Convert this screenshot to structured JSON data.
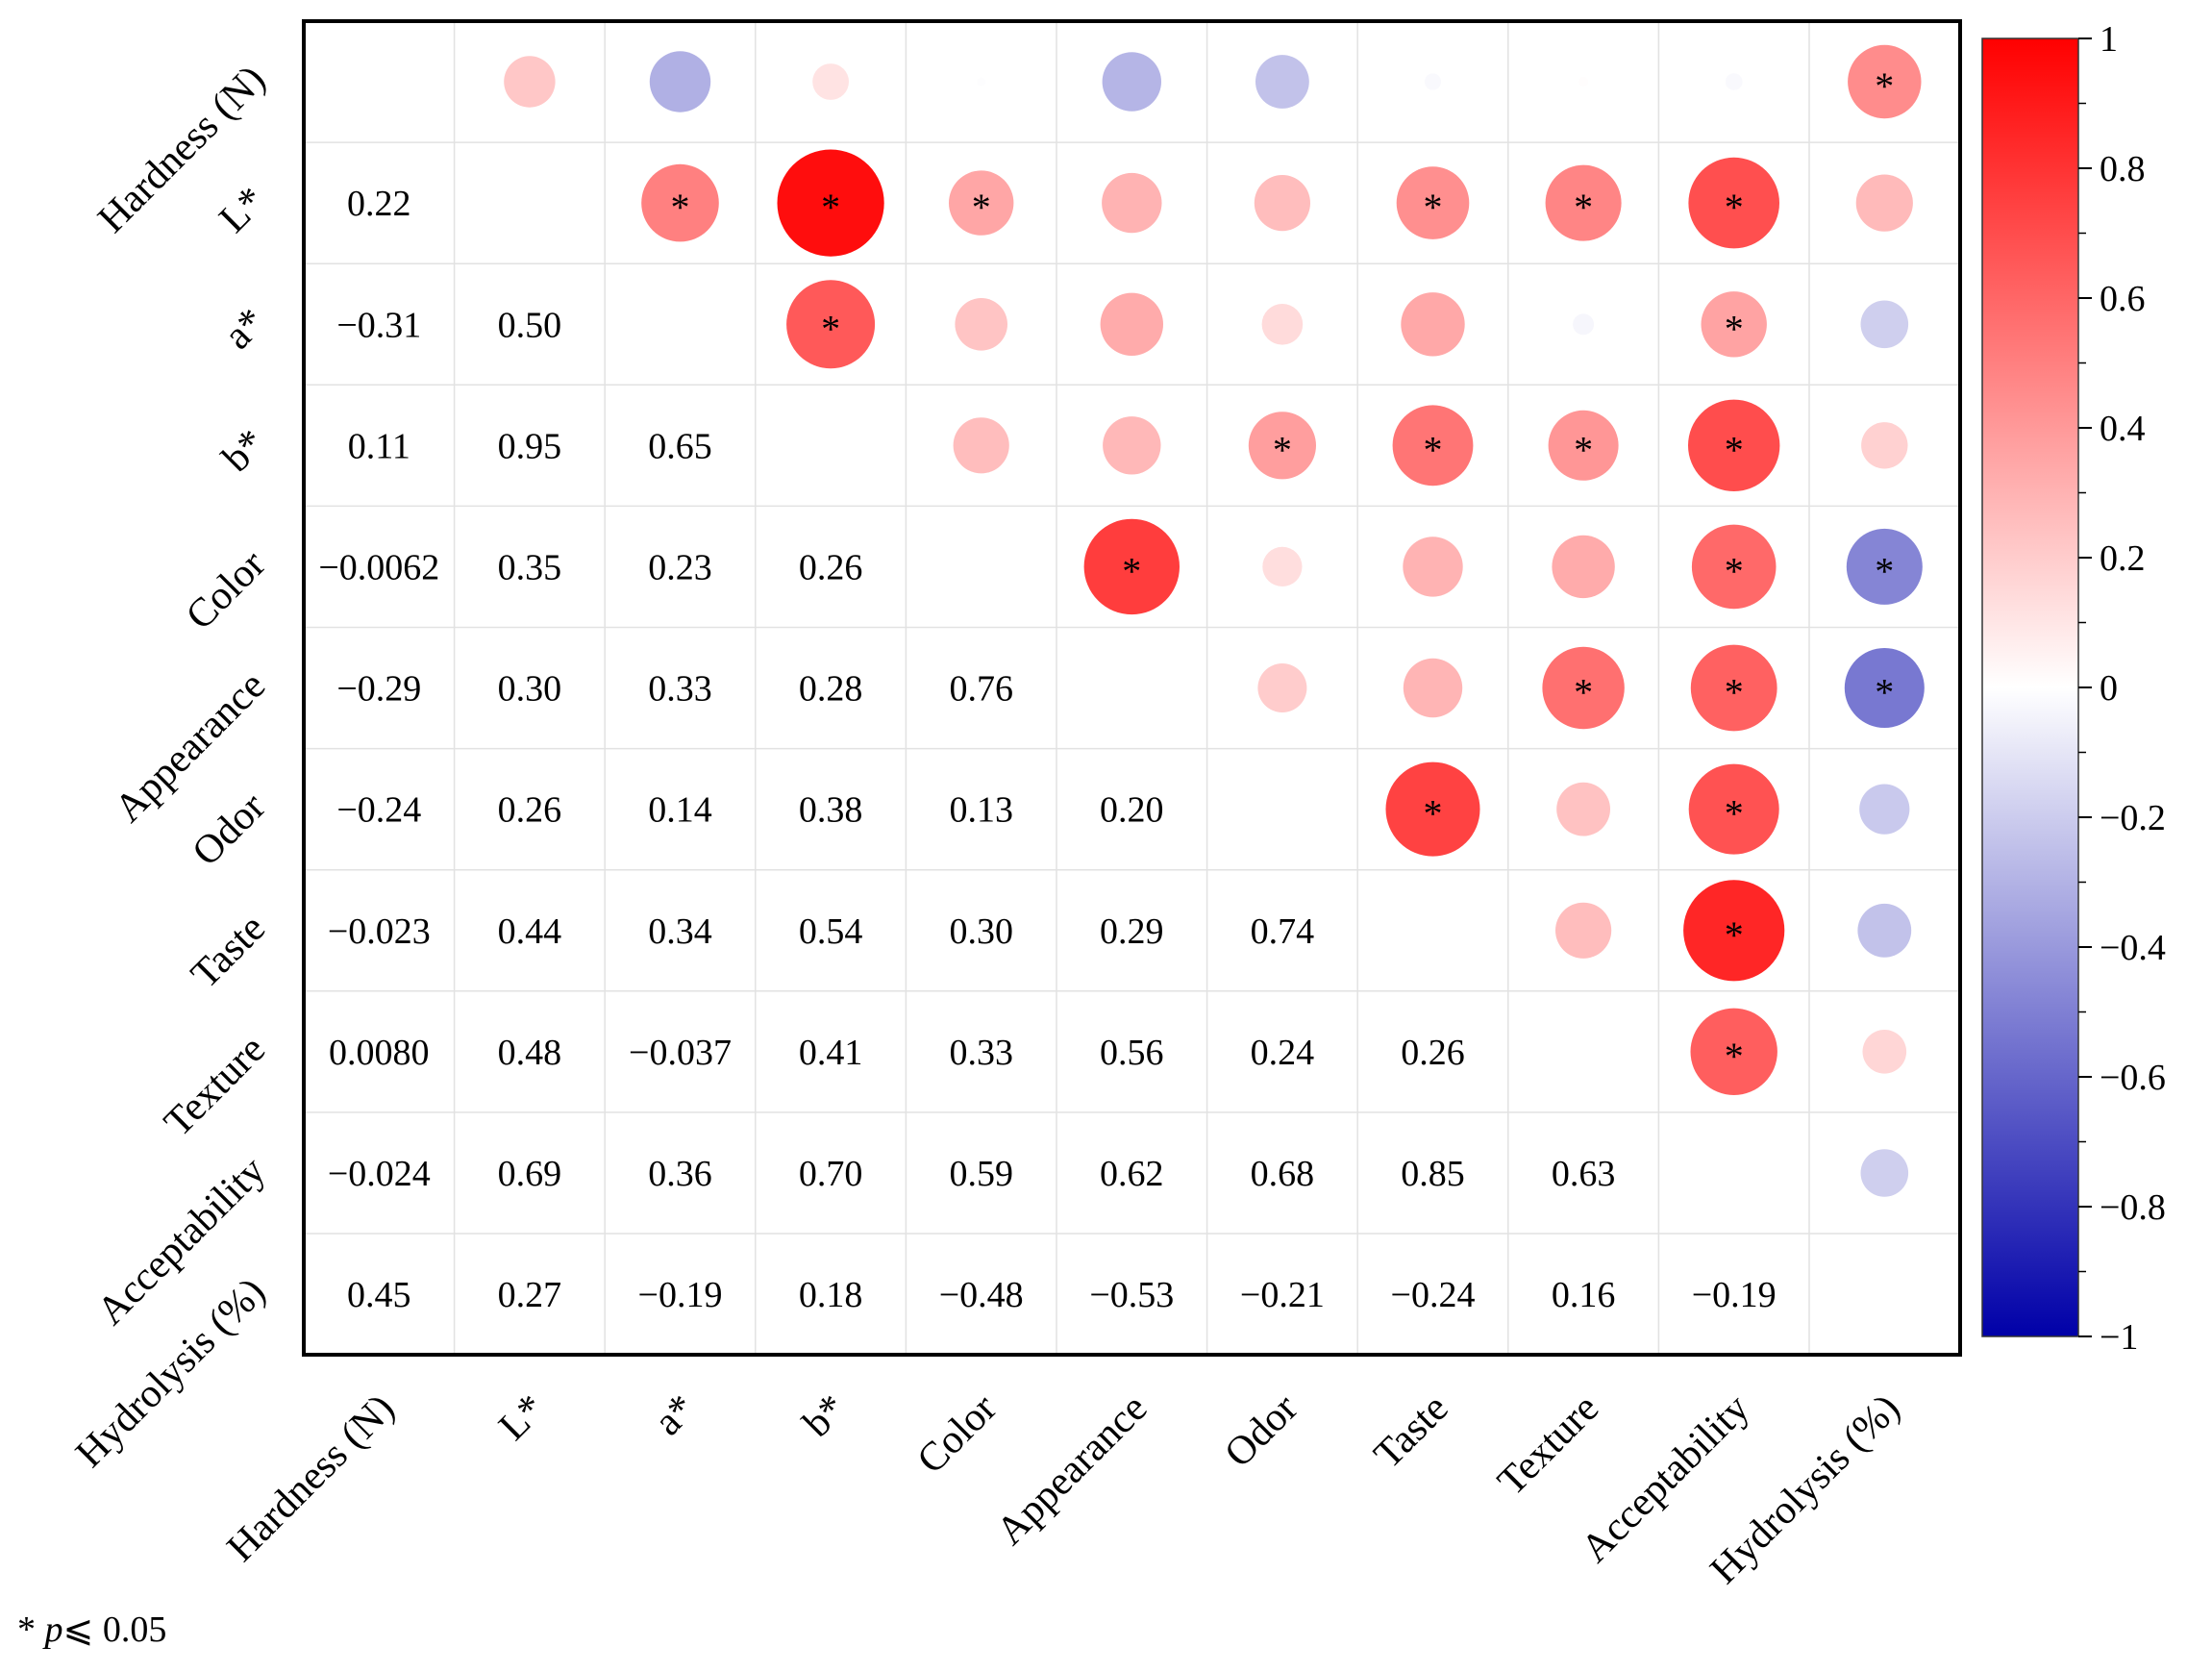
{
  "chart_data": {
    "type": "heatmap",
    "title": "",
    "variables": [
      "Hardness (N)",
      "L*",
      "a*",
      "b*",
      "Color",
      "Appearance",
      "Odor",
      "Taste",
      "Texture",
      "Acceptability",
      "Hydrolysis (%)"
    ],
    "lower_triangle_labels": [
      [
        "0.22"
      ],
      [
        "−0.31",
        "0.50"
      ],
      [
        "0.11",
        "0.95",
        "0.65"
      ],
      [
        "−0.0062",
        "0.35",
        "0.23",
        "0.26"
      ],
      [
        "−0.29",
        "0.30",
        "0.33",
        "0.28",
        "0.76"
      ],
      [
        "−0.24",
        "0.26",
        "0.14",
        "0.38",
        "0.13",
        "0.20"
      ],
      [
        "−0.023",
        "0.44",
        "0.34",
        "0.54",
        "0.30",
        "0.29",
        "0.74"
      ],
      [
        "0.0080",
        "0.48",
        "−0.037",
        "0.41",
        "0.33",
        "0.56",
        "0.24",
        "0.26"
      ],
      [
        "−0.024",
        "0.69",
        "0.36",
        "0.70",
        "0.59",
        "0.62",
        "0.68",
        "0.85",
        "0.63"
      ],
      [
        "0.45",
        "0.27",
        "−0.19",
        "0.18",
        "−0.48",
        "−0.53",
        "−0.21",
        "−0.24",
        "0.16",
        "−0.19"
      ]
    ],
    "significant_pairs": [
      [
        0,
        10
      ],
      [
        1,
        2
      ],
      [
        1,
        3
      ],
      [
        1,
        4
      ],
      [
        1,
        7
      ],
      [
        1,
        8
      ],
      [
        1,
        9
      ],
      [
        2,
        3
      ],
      [
        2,
        9
      ],
      [
        3,
        6
      ],
      [
        3,
        7
      ],
      [
        3,
        8
      ],
      [
        3,
        9
      ],
      [
        4,
        5
      ],
      [
        4,
        9
      ],
      [
        4,
        10
      ],
      [
        5,
        8
      ],
      [
        5,
        9
      ],
      [
        5,
        10
      ],
      [
        6,
        7
      ],
      [
        6,
        9
      ],
      [
        7,
        9
      ],
      [
        8,
        9
      ]
    ],
    "significance_marker": "*",
    "colorbar": {
      "range": [
        -1,
        1
      ],
      "ticks": [
        "1",
        "0.8",
        "0.6",
        "0.4",
        "0.2",
        "0",
        "−0.2",
        "−0.4",
        "−0.6",
        "−0.8",
        "−1"
      ],
      "color_negative": "#0000a8",
      "color_zero": "#ffffff",
      "color_positive": "#ff0000"
    }
  },
  "footnote": {
    "marker": "* ",
    "p_symbol": "p",
    "condition": "⩽ 0.05"
  }
}
